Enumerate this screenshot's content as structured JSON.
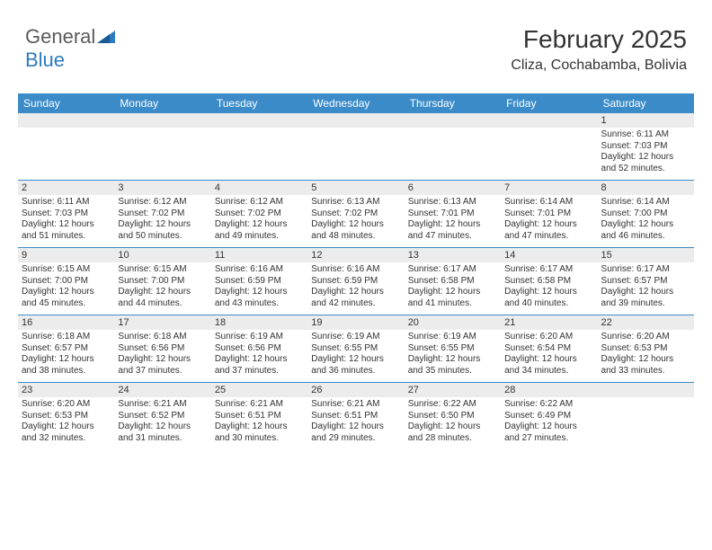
{
  "logo": {
    "word1": "General",
    "word2": "Blue"
  },
  "header": {
    "month_title": "February 2025",
    "location": "Cliza, Cochabamba, Bolivia"
  },
  "colors": {
    "header_bg": "#3b8bc9",
    "header_text": "#ffffff",
    "daynum_bg": "#ececec",
    "rule": "#3b8bc9",
    "text": "#333333",
    "logo_gray": "#5a5a5a",
    "logo_blue": "#2d7bc0"
  },
  "weekdays": [
    "Sunday",
    "Monday",
    "Tuesday",
    "Wednesday",
    "Thursday",
    "Friday",
    "Saturday"
  ],
  "weeks": [
    [
      {
        "n": "",
        "sr": "",
        "ss": "",
        "dl": ""
      },
      {
        "n": "",
        "sr": "",
        "ss": "",
        "dl": ""
      },
      {
        "n": "",
        "sr": "",
        "ss": "",
        "dl": ""
      },
      {
        "n": "",
        "sr": "",
        "ss": "",
        "dl": ""
      },
      {
        "n": "",
        "sr": "",
        "ss": "",
        "dl": ""
      },
      {
        "n": "",
        "sr": "",
        "ss": "",
        "dl": ""
      },
      {
        "n": "1",
        "sr": "Sunrise: 6:11 AM",
        "ss": "Sunset: 7:03 PM",
        "dl": "Daylight: 12 hours and 52 minutes."
      }
    ],
    [
      {
        "n": "2",
        "sr": "Sunrise: 6:11 AM",
        "ss": "Sunset: 7:03 PM",
        "dl": "Daylight: 12 hours and 51 minutes."
      },
      {
        "n": "3",
        "sr": "Sunrise: 6:12 AM",
        "ss": "Sunset: 7:02 PM",
        "dl": "Daylight: 12 hours and 50 minutes."
      },
      {
        "n": "4",
        "sr": "Sunrise: 6:12 AM",
        "ss": "Sunset: 7:02 PM",
        "dl": "Daylight: 12 hours and 49 minutes."
      },
      {
        "n": "5",
        "sr": "Sunrise: 6:13 AM",
        "ss": "Sunset: 7:02 PM",
        "dl": "Daylight: 12 hours and 48 minutes."
      },
      {
        "n": "6",
        "sr": "Sunrise: 6:13 AM",
        "ss": "Sunset: 7:01 PM",
        "dl": "Daylight: 12 hours and 47 minutes."
      },
      {
        "n": "7",
        "sr": "Sunrise: 6:14 AM",
        "ss": "Sunset: 7:01 PM",
        "dl": "Daylight: 12 hours and 47 minutes."
      },
      {
        "n": "8",
        "sr": "Sunrise: 6:14 AM",
        "ss": "Sunset: 7:00 PM",
        "dl": "Daylight: 12 hours and 46 minutes."
      }
    ],
    [
      {
        "n": "9",
        "sr": "Sunrise: 6:15 AM",
        "ss": "Sunset: 7:00 PM",
        "dl": "Daylight: 12 hours and 45 minutes."
      },
      {
        "n": "10",
        "sr": "Sunrise: 6:15 AM",
        "ss": "Sunset: 7:00 PM",
        "dl": "Daylight: 12 hours and 44 minutes."
      },
      {
        "n": "11",
        "sr": "Sunrise: 6:16 AM",
        "ss": "Sunset: 6:59 PM",
        "dl": "Daylight: 12 hours and 43 minutes."
      },
      {
        "n": "12",
        "sr": "Sunrise: 6:16 AM",
        "ss": "Sunset: 6:59 PM",
        "dl": "Daylight: 12 hours and 42 minutes."
      },
      {
        "n": "13",
        "sr": "Sunrise: 6:17 AM",
        "ss": "Sunset: 6:58 PM",
        "dl": "Daylight: 12 hours and 41 minutes."
      },
      {
        "n": "14",
        "sr": "Sunrise: 6:17 AM",
        "ss": "Sunset: 6:58 PM",
        "dl": "Daylight: 12 hours and 40 minutes."
      },
      {
        "n": "15",
        "sr": "Sunrise: 6:17 AM",
        "ss": "Sunset: 6:57 PM",
        "dl": "Daylight: 12 hours and 39 minutes."
      }
    ],
    [
      {
        "n": "16",
        "sr": "Sunrise: 6:18 AM",
        "ss": "Sunset: 6:57 PM",
        "dl": "Daylight: 12 hours and 38 minutes."
      },
      {
        "n": "17",
        "sr": "Sunrise: 6:18 AM",
        "ss": "Sunset: 6:56 PM",
        "dl": "Daylight: 12 hours and 37 minutes."
      },
      {
        "n": "18",
        "sr": "Sunrise: 6:19 AM",
        "ss": "Sunset: 6:56 PM",
        "dl": "Daylight: 12 hours and 37 minutes."
      },
      {
        "n": "19",
        "sr": "Sunrise: 6:19 AM",
        "ss": "Sunset: 6:55 PM",
        "dl": "Daylight: 12 hours and 36 minutes."
      },
      {
        "n": "20",
        "sr": "Sunrise: 6:19 AM",
        "ss": "Sunset: 6:55 PM",
        "dl": "Daylight: 12 hours and 35 minutes."
      },
      {
        "n": "21",
        "sr": "Sunrise: 6:20 AM",
        "ss": "Sunset: 6:54 PM",
        "dl": "Daylight: 12 hours and 34 minutes."
      },
      {
        "n": "22",
        "sr": "Sunrise: 6:20 AM",
        "ss": "Sunset: 6:53 PM",
        "dl": "Daylight: 12 hours and 33 minutes."
      }
    ],
    [
      {
        "n": "23",
        "sr": "Sunrise: 6:20 AM",
        "ss": "Sunset: 6:53 PM",
        "dl": "Daylight: 12 hours and 32 minutes."
      },
      {
        "n": "24",
        "sr": "Sunrise: 6:21 AM",
        "ss": "Sunset: 6:52 PM",
        "dl": "Daylight: 12 hours and 31 minutes."
      },
      {
        "n": "25",
        "sr": "Sunrise: 6:21 AM",
        "ss": "Sunset: 6:51 PM",
        "dl": "Daylight: 12 hours and 30 minutes."
      },
      {
        "n": "26",
        "sr": "Sunrise: 6:21 AM",
        "ss": "Sunset: 6:51 PM",
        "dl": "Daylight: 12 hours and 29 minutes."
      },
      {
        "n": "27",
        "sr": "Sunrise: 6:22 AM",
        "ss": "Sunset: 6:50 PM",
        "dl": "Daylight: 12 hours and 28 minutes."
      },
      {
        "n": "28",
        "sr": "Sunrise: 6:22 AM",
        "ss": "Sunset: 6:49 PM",
        "dl": "Daylight: 12 hours and 27 minutes."
      },
      {
        "n": "",
        "sr": "",
        "ss": "",
        "dl": ""
      }
    ]
  ]
}
